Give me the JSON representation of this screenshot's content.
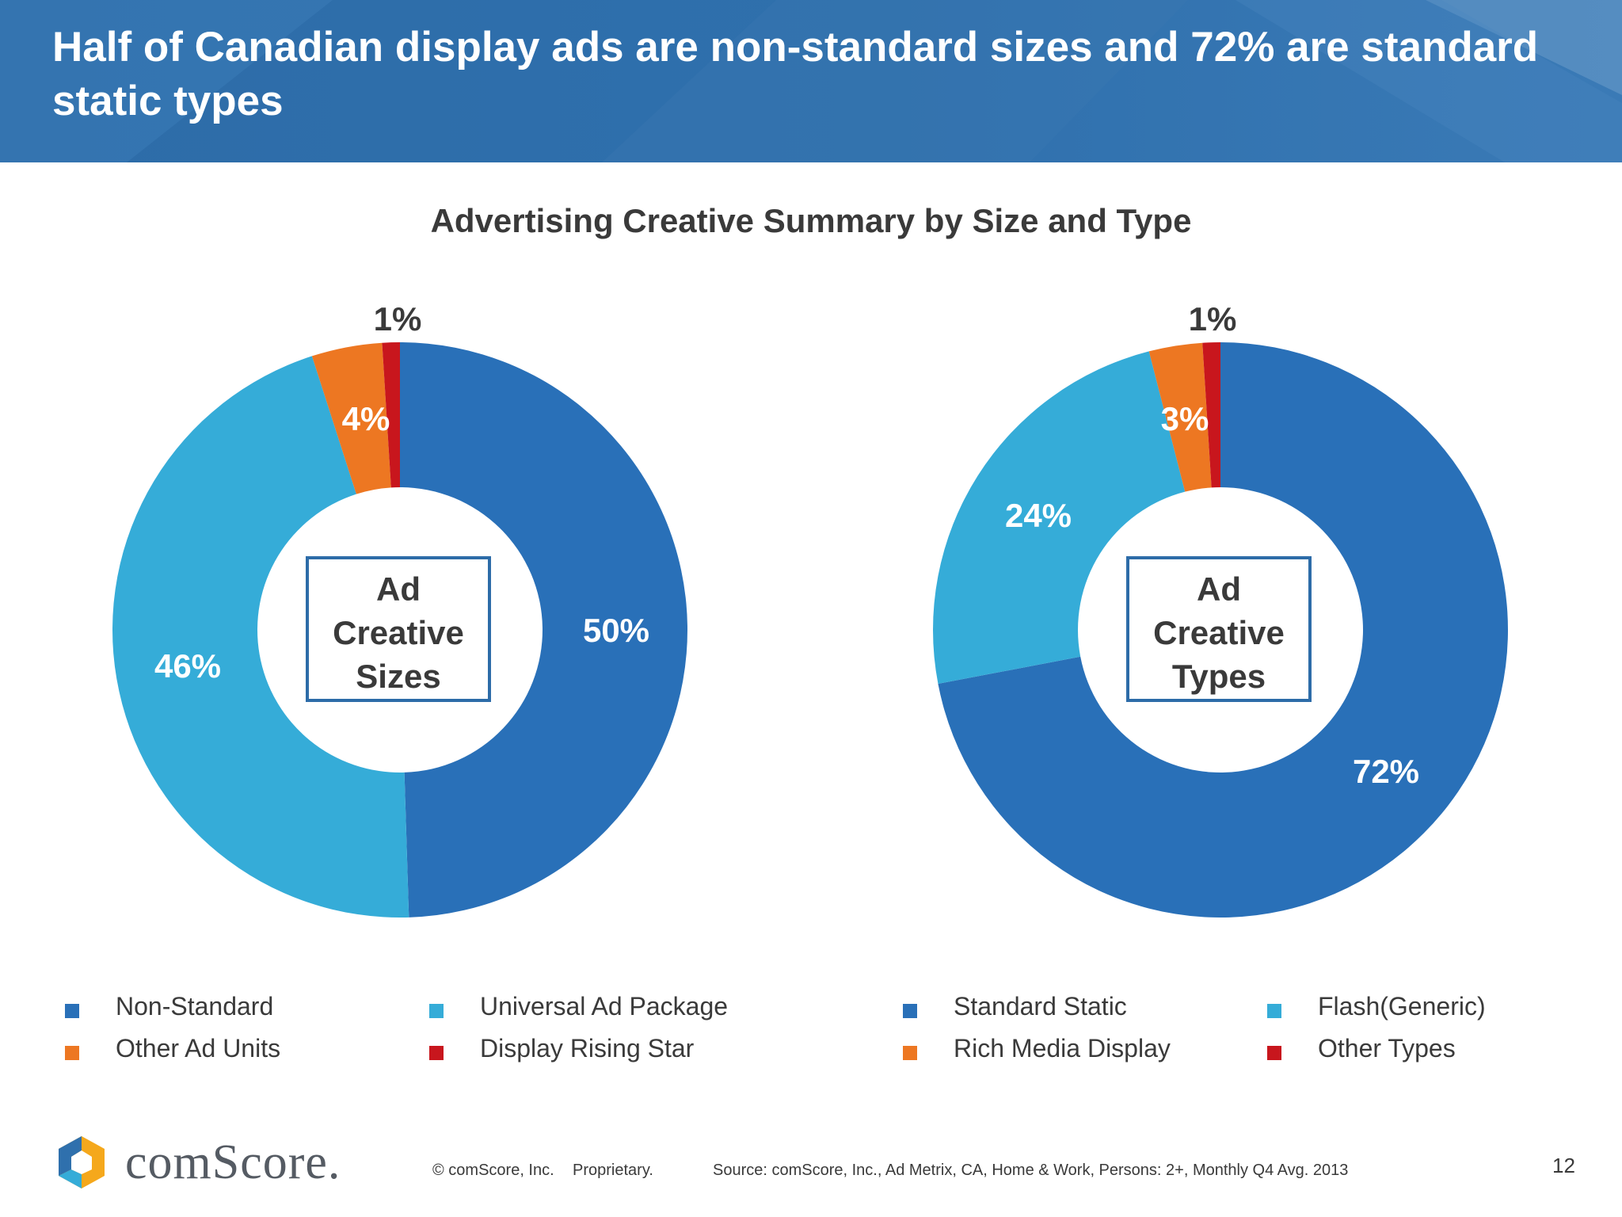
{
  "header": {
    "title": "Half of Canadian display ads are non-standard sizes and 72% are standard static types"
  },
  "subtitle": "Advertising Creative Summary by Size and Type",
  "chart_data": [
    {
      "type": "pie",
      "title": "Advertising Creative Summary by Size and Type",
      "center_label": [
        "Ad",
        "Creative",
        "Sizes"
      ],
      "categories": [
        "Non-Standard",
        "Universal Ad Package",
        "Other Ad Units",
        "Display Rising Star"
      ],
      "values": [
        50,
        46,
        4,
        1
      ],
      "labels": [
        "50%",
        "46%",
        "4%",
        "1%"
      ],
      "colors": [
        "#2970b8",
        "#35acd8",
        "#ed7722",
        "#c8161d"
      ],
      "legend_position": "bottom"
    },
    {
      "type": "pie",
      "title": "Advertising Creative Summary by Size and Type",
      "center_label": [
        "Ad",
        "Creative",
        "Types"
      ],
      "categories": [
        "Standard Static",
        "Flash(Generic)",
        "Rich Media Display",
        "Other Types"
      ],
      "values": [
        72,
        24,
        3,
        1
      ],
      "labels": [
        "72%",
        "24%",
        "3%",
        "1%"
      ],
      "colors": [
        "#2970b8",
        "#35acd8",
        "#ed7722",
        "#c8161d"
      ],
      "legend_position": "bottom"
    }
  ],
  "legend_left": [
    {
      "label": "Non-Standard",
      "color": "#2970b8"
    },
    {
      "label": "Universal Ad Package",
      "color": "#35acd8"
    },
    {
      "label": "Other Ad Units",
      "color": "#ed7722"
    },
    {
      "label": "Display Rising Star",
      "color": "#c8161d"
    }
  ],
  "legend_right": [
    {
      "label": "Standard Static",
      "color": "#2970b8"
    },
    {
      "label": "Flash(Generic)",
      "color": "#35acd8"
    },
    {
      "label": "Rich Media Display",
      "color": "#ed7722"
    },
    {
      "label": "Other Types",
      "color": "#c8161d"
    }
  ],
  "footer": {
    "logo_text": "comScore.",
    "copyright": "© comScore, Inc.",
    "proprietary": "Proprietary.",
    "source": "Source: comScore, Inc., Ad Metrix, CA, Home & Work, Persons: 2+, Monthly Q4 Avg. 2013",
    "page_number": "12"
  },
  "colors": {
    "header_blue": "#2f70ad",
    "text_dark": "#3a3a3a"
  }
}
